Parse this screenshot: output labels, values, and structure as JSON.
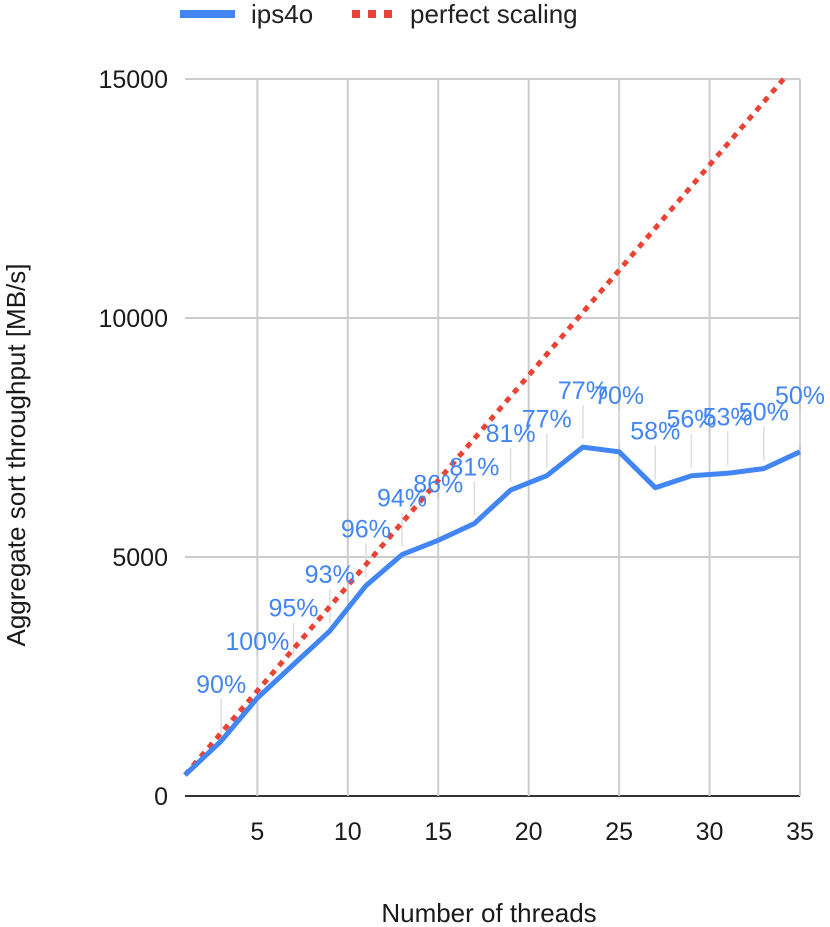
{
  "chart_data": {
    "type": "line",
    "title": "",
    "xlabel": "Number of threads",
    "ylabel": "Aggregate sort throughput [MB/s]",
    "xlim": [
      1,
      35
    ],
    "ylim": [
      0,
      15000
    ],
    "xticks": [
      5,
      10,
      15,
      20,
      25,
      30,
      35
    ],
    "yticks": [
      0,
      5000,
      10000,
      15000
    ],
    "xtick_labels": [
      "5",
      "10",
      "15",
      "20",
      "25",
      "30",
      "35"
    ],
    "ytick_labels": [
      "0",
      "5000",
      "10000",
      "15000"
    ],
    "grid": true,
    "legend_position": "top",
    "x": [
      1,
      3,
      5,
      7,
      9,
      11,
      13,
      15,
      17,
      19,
      21,
      23,
      25,
      27,
      29,
      31,
      33,
      35
    ],
    "series": [
      {
        "name": "ips4o",
        "color": "#4285f4",
        "style": "solid",
        "values": [
          440,
          1150,
          2050,
          2750,
          3450,
          4400,
          5050,
          5350,
          5700,
          6400,
          6700,
          7300,
          7200,
          6450,
          6700,
          6750,
          6850,
          7200
        ],
        "data_labels": [
          "",
          "90%",
          "100%",
          "95%",
          "93%",
          "96%",
          "94%",
          "86%",
          "81%",
          "81%",
          "77%",
          "77%",
          "70%",
          "58%",
          "56%",
          "53%",
          "50%",
          "50%"
        ]
      },
      {
        "name": "perfect scaling",
        "color": "#ea4335",
        "style": "dotted",
        "values": [
          440,
          1320,
          2200,
          3080,
          3960,
          4840,
          5720,
          6600,
          7480,
          8360,
          9240,
          10120,
          11000,
          11880,
          12760,
          13640,
          14520,
          15400
        ]
      }
    ]
  }
}
